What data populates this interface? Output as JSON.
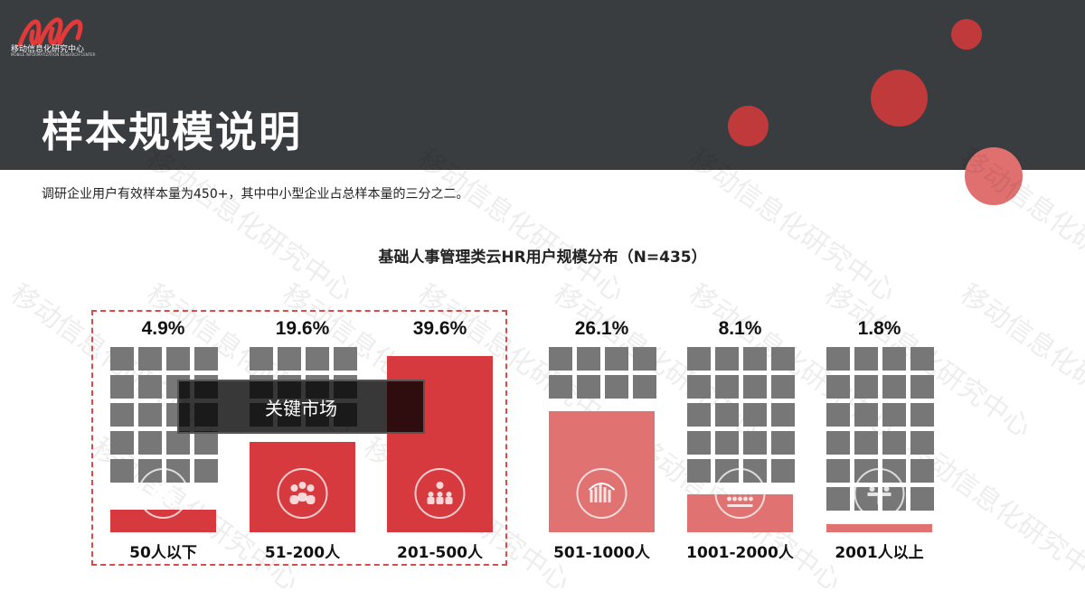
{
  "header": {
    "logo_text": "移动信息化研究中心",
    "logo_subtext": "MOBILE INFORMATIZATION RESEARCH CENTER",
    "title": "样本规模说明",
    "background_color": "#3a3d40"
  },
  "subtitle": "调研企业用户有效样本量为450+，其中中小型企业占总样本量的三分之二。",
  "watermark_text": "移动信息化研究中心",
  "key_market": {
    "label": "关键市场"
  },
  "colors": {
    "grid_square": "#777777",
    "dark_red": "#d63a3f",
    "light_red": "#e07272",
    "highlight_border": "#d94a4a"
  },
  "chart_data": {
    "type": "bar",
    "title": "基础人事管理类云HR用户规模分布（N=435）",
    "categories": [
      "50人以下",
      "51-200人",
      "201-500人",
      "501-1000人",
      "1001-2000人",
      "2001人以上"
    ],
    "values": [
      4.9,
      19.6,
      39.6,
      26.1,
      8.1,
      1.8
    ],
    "value_labels": [
      "4.9%",
      "19.6%",
      "39.6%",
      "26.1%",
      "8.1%",
      "1.8%"
    ],
    "unit": "%",
    "ylim": [
      0,
      40
    ],
    "icons": [
      "business-people-icon",
      "group-icon",
      "meeting-icon",
      "crowd-arch-icon",
      "audience-icon",
      "conference-icon"
    ],
    "highlighted_categories": [
      "50人以下",
      "51-200人",
      "201-500人"
    ]
  }
}
